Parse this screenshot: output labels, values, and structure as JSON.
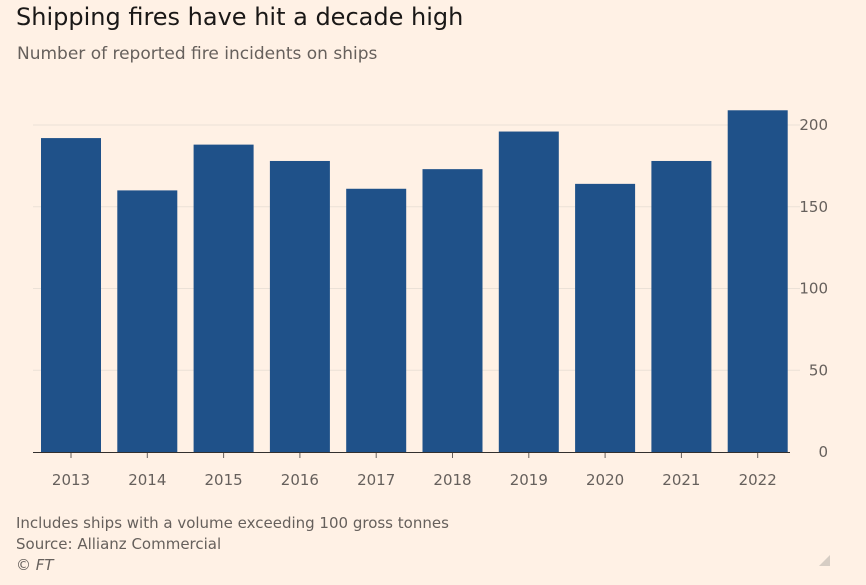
{
  "title": "Shipping fires have hit a decade high",
  "subtitle": "Number of reported fire incidents on ships",
  "footnotes": [
    "Includes ships with a volume exceeding 100 gross tonnes",
    "Source: Allianz Commercial"
  ],
  "credit": "© FT",
  "icons": {
    "resize": "resize-handle-icon"
  },
  "colors": {
    "background": "#fff1e5",
    "bar": "#1f5189",
    "grid": "#ebe1d7",
    "text": "#66605c"
  },
  "chart_data": {
    "type": "bar",
    "title": "Shipping fires have hit a decade high",
    "subtitle": "Number of reported fire incidents on ships",
    "categories": [
      "2013",
      "2014",
      "2015",
      "2016",
      "2017",
      "2018",
      "2019",
      "2020",
      "2021",
      "2022"
    ],
    "values": [
      192,
      160,
      188,
      178,
      161,
      173,
      196,
      164,
      178,
      209
    ],
    "ylim": [
      0,
      200
    ],
    "yticks": [
      0,
      50,
      100,
      150,
      200
    ],
    "y_axis_side": "right",
    "grid": true,
    "legend": "none"
  }
}
